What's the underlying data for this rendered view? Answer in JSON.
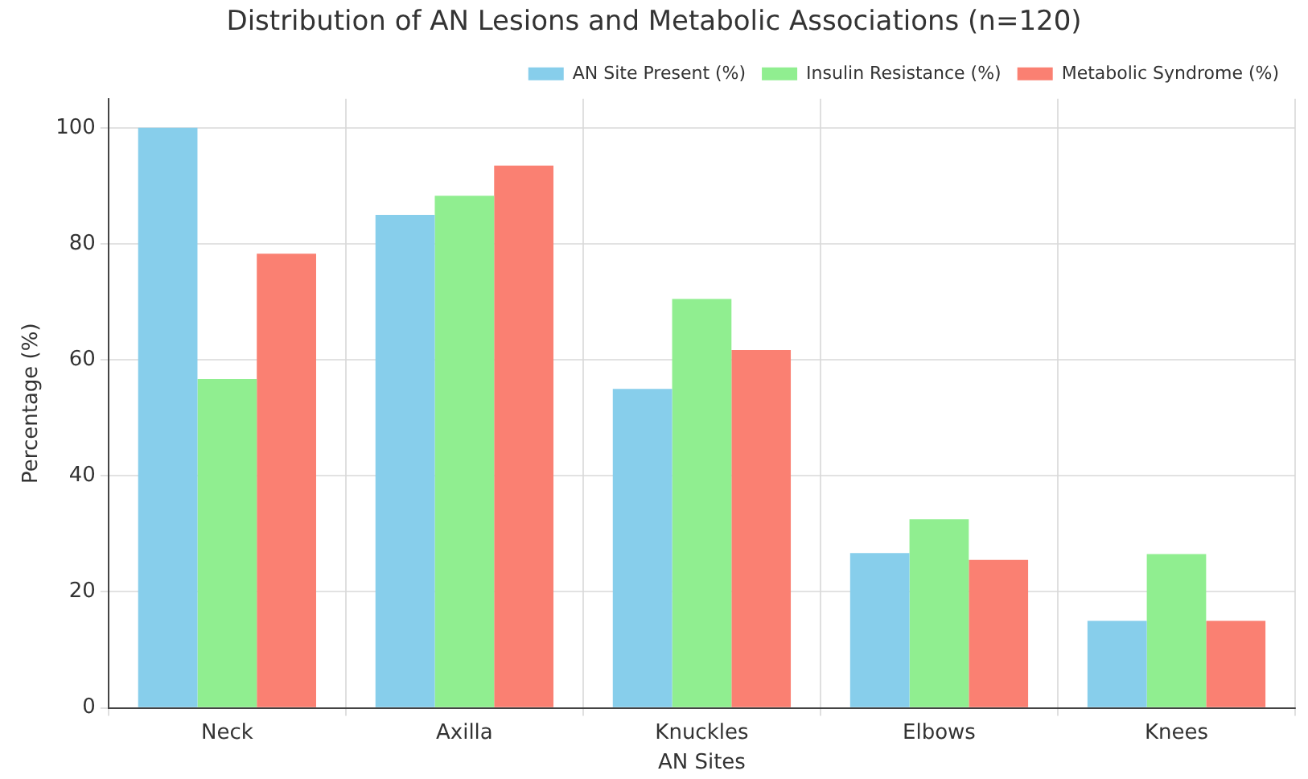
{
  "chart_data": {
    "type": "bar",
    "title": "Distribution of AN Lesions and Metabolic Associations (n=120)",
    "xlabel": "AN Sites",
    "ylabel": "Percentage (%)",
    "categories": [
      "Neck",
      "Axilla",
      "Knuckles",
      "Elbows",
      "Knees"
    ],
    "series": [
      {
        "name": "AN Site Present (%)",
        "color": "#87ceeb",
        "values": [
          100,
          85,
          55,
          26.7,
          15
        ]
      },
      {
        "name": "Insulin Resistance (%)",
        "color": "#90ee90",
        "values": [
          56.7,
          88.3,
          70.5,
          32.5,
          26.5
        ]
      },
      {
        "name": "Metabolic Syndrome (%)",
        "color": "#fa8072",
        "values": [
          78.3,
          93.5,
          61.7,
          25.5,
          15
        ]
      }
    ],
    "ylim": [
      0,
      105
    ],
    "yticks": [
      0,
      20,
      40,
      60,
      80,
      100
    ],
    "grid": true,
    "legend": "top right"
  }
}
